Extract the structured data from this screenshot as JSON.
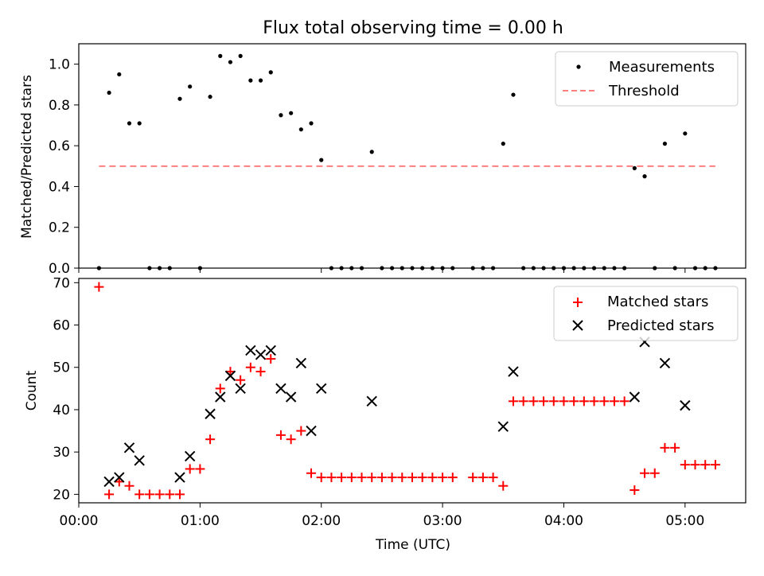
{
  "title": "Flux total observing time = 0.00 h",
  "colors": {
    "measurement": "#000000",
    "threshold": "#ff7f7f",
    "matched": "#ff0000",
    "predicted": "#000000"
  },
  "chart_data": [
    {
      "type": "scatter",
      "title": "Flux total observing time = 0.00 h",
      "xlabel": "",
      "ylabel": "Matched/Predicted stars",
      "xlim": [
        "00:00",
        "05:30"
      ],
      "ylim": [
        0,
        1.1
      ],
      "grid": false,
      "legend_position": "top-right",
      "x_ticks": [
        "00:00",
        "01:00",
        "02:00",
        "03:00",
        "04:00",
        "05:00"
      ],
      "y_ticks": [
        "0.0",
        "0.2",
        "0.4",
        "0.6",
        "0.8",
        "1.0"
      ],
      "series": [
        {
          "name": "Measurements",
          "style": "dot",
          "x": [
            "00:10",
            "00:15",
            "00:20",
            "00:25",
            "00:30",
            "00:35",
            "00:40",
            "00:45",
            "00:50",
            "00:55",
            "01:00",
            "01:05",
            "01:10",
            "01:15",
            "01:20",
            "01:25",
            "01:30",
            "01:35",
            "01:40",
            "01:45",
            "01:50",
            "01:55",
            "02:00",
            "02:05",
            "02:10",
            "02:15",
            "02:20",
            "02:25",
            "02:30",
            "02:35",
            "02:40",
            "02:45",
            "02:50",
            "02:55",
            "03:00",
            "03:05",
            "03:15",
            "03:20",
            "03:25",
            "03:30",
            "03:35",
            "03:40",
            "03:45",
            "03:50",
            "03:55",
            "04:00",
            "04:05",
            "04:10",
            "04:15",
            "04:20",
            "04:25",
            "04:30",
            "04:35",
            "04:40",
            "04:45",
            "04:50",
            "04:55",
            "05:00",
            "05:05",
            "05:10",
            "05:15"
          ],
          "y": [
            0.0,
            0.86,
            0.95,
            0.71,
            0.71,
            0.0,
            0.0,
            0.0,
            0.83,
            0.89,
            0.0,
            0.84,
            1.04,
            1.01,
            1.04,
            0.92,
            0.92,
            0.96,
            0.75,
            0.76,
            0.68,
            0.71,
            0.53,
            0.0,
            0.0,
            0.0,
            0.0,
            0.57,
            0.0,
            0.0,
            0.0,
            0.0,
            0.0,
            0.0,
            0.0,
            0.0,
            0.0,
            0.0,
            0.0,
            0.61,
            0.85,
            0.0,
            0.0,
            0.0,
            0.0,
            0.0,
            0.0,
            0.0,
            0.0,
            0.0,
            0.0,
            0.0,
            0.49,
            0.45,
            0.0,
            0.61,
            0.0,
            0.66,
            0.0,
            0.0,
            0.0
          ]
        },
        {
          "name": "Threshold",
          "style": "dashed-line",
          "x": [
            "00:10",
            "05:15"
          ],
          "y": [
            0.5,
            0.5
          ]
        }
      ]
    },
    {
      "type": "scatter",
      "xlabel": "Time (UTC)",
      "ylabel": "Count",
      "xlim": [
        "00:00",
        "05:30"
      ],
      "ylim": [
        18,
        71
      ],
      "grid": false,
      "legend_position": "top-right",
      "x_ticks": [
        "00:00",
        "01:00",
        "02:00",
        "03:00",
        "04:00",
        "05:00"
      ],
      "y_ticks": [
        "20",
        "30",
        "40",
        "50",
        "60",
        "70"
      ],
      "series": [
        {
          "name": "Matched stars",
          "style": "plus",
          "x": [
            "00:10",
            "00:15",
            "00:20",
            "00:25",
            "00:30",
            "00:35",
            "00:40",
            "00:45",
            "00:50",
            "00:55",
            "01:00",
            "01:05",
            "01:10",
            "01:15",
            "01:20",
            "01:25",
            "01:30",
            "01:35",
            "01:40",
            "01:45",
            "01:50",
            "01:55",
            "02:00",
            "02:05",
            "02:10",
            "02:15",
            "02:20",
            "02:25",
            "02:30",
            "02:35",
            "02:40",
            "02:45",
            "02:50",
            "02:55",
            "03:00",
            "03:05",
            "03:15",
            "03:20",
            "03:25",
            "03:30",
            "03:35",
            "03:40",
            "03:45",
            "03:50",
            "03:55",
            "04:00",
            "04:05",
            "04:10",
            "04:15",
            "04:20",
            "04:25",
            "04:30",
            "04:35",
            "04:40",
            "04:45",
            "04:50",
            "04:55",
            "05:00",
            "05:05",
            "05:10",
            "05:15"
          ],
          "y": [
            69,
            20,
            23,
            22,
            20,
            20,
            20,
            20,
            20,
            26,
            26,
            33,
            45,
            49,
            47,
            50,
            49,
            52,
            34,
            33,
            35,
            25,
            24,
            24,
            24,
            24,
            24,
            24,
            24,
            24,
            24,
            24,
            24,
            24,
            24,
            24,
            24,
            24,
            24,
            22,
            42,
            42,
            42,
            42,
            42,
            42,
            42,
            42,
            42,
            42,
            42,
            42,
            21,
            25,
            25,
            31,
            31,
            27,
            27,
            27,
            27
          ]
        },
        {
          "name": "Predicted stars",
          "style": "x",
          "x": [
            "00:15",
            "00:20",
            "00:25",
            "00:30",
            "00:50",
            "00:55",
            "01:05",
            "01:10",
            "01:15",
            "01:20",
            "01:25",
            "01:30",
            "01:35",
            "01:40",
            "01:45",
            "01:50",
            "01:55",
            "02:00",
            "02:25",
            "03:30",
            "03:35",
            "04:35",
            "04:40",
            "04:50",
            "05:00"
          ],
          "y": [
            23,
            24,
            31,
            28,
            24,
            29,
            39,
            43,
            48,
            45,
            54,
            53,
            54,
            45,
            43,
            51,
            35,
            45,
            42,
            36,
            49,
            43,
            56,
            51,
            41
          ]
        }
      ]
    }
  ]
}
